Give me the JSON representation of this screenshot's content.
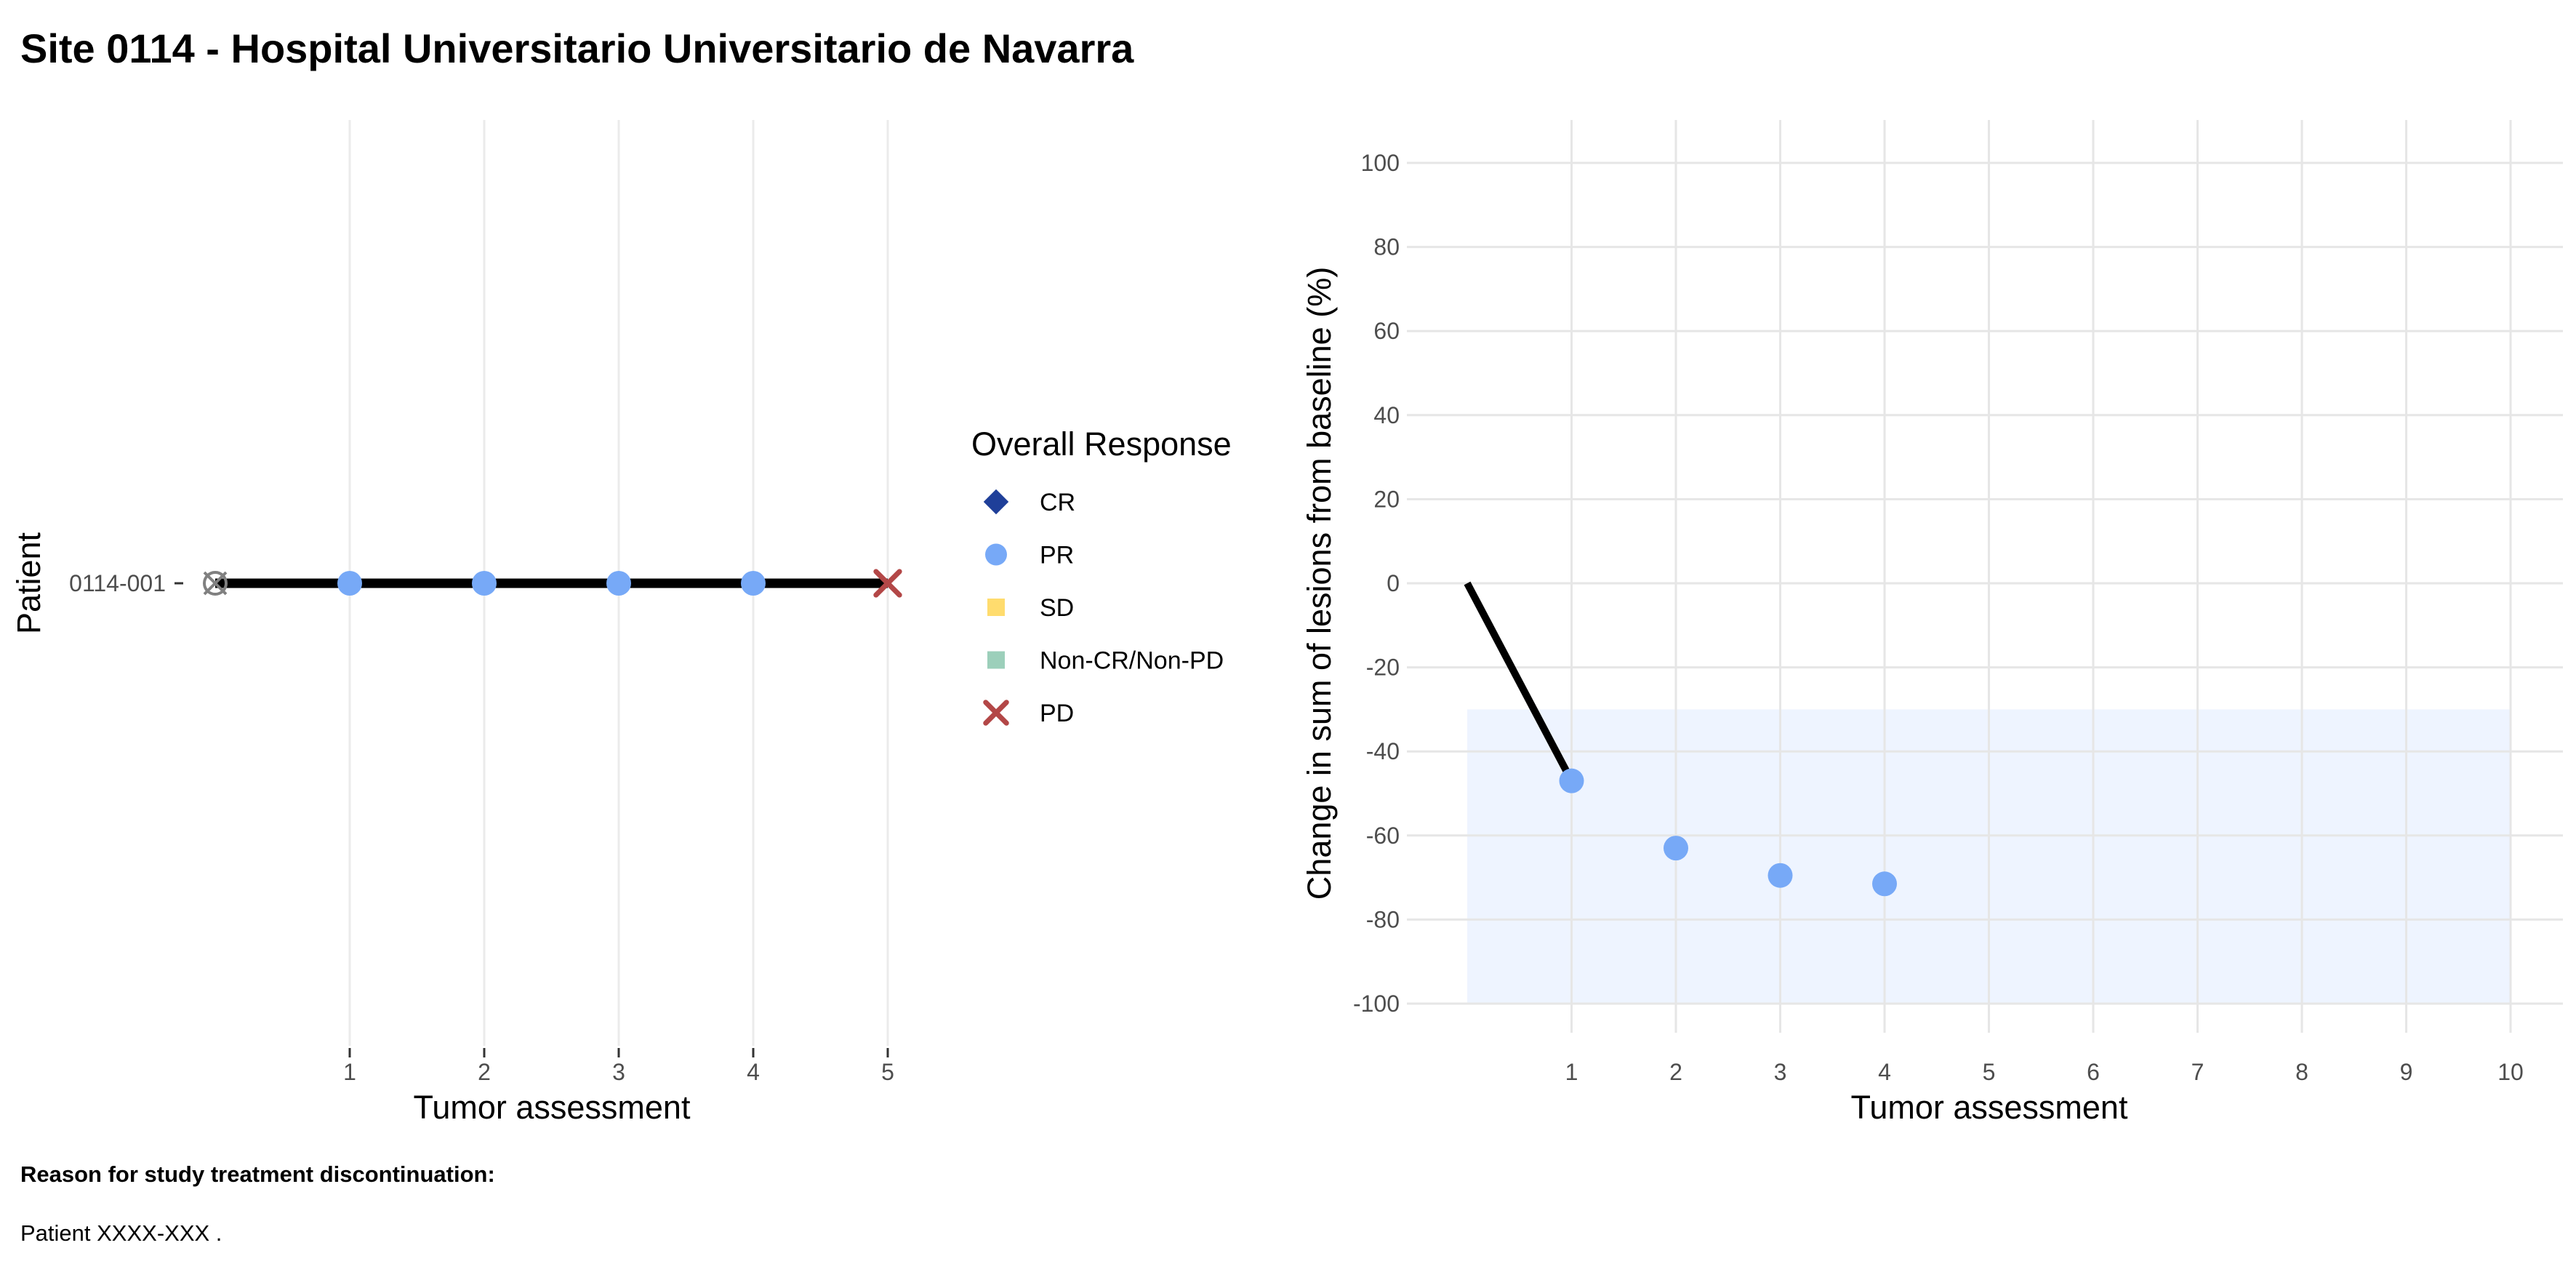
{
  "title": "Site 0114 - Hospital Universitario Universitario de Navarra",
  "footer": {
    "reason_label": "Reason for study treatment discontinuation:",
    "reason_text": "Patient XXXX-XXX ."
  },
  "legend": {
    "title": "Overall Response",
    "items": [
      {
        "label": "CR",
        "shape": "diamond",
        "color": "#1f3f99"
      },
      {
        "label": "PR",
        "shape": "circle",
        "color": "#77a9f7"
      },
      {
        "label": "SD",
        "shape": "square",
        "color": "#ffdc6e"
      },
      {
        "label": "Non-CR/Non-PD",
        "shape": "square",
        "color": "#9ccfba"
      },
      {
        "label": "PD",
        "shape": "cross",
        "color": "#b34747"
      }
    ]
  },
  "chart_data": [
    {
      "type": "scatter",
      "xlabel": "Tumor assessment",
      "ylabel": "Patient",
      "x_ticks": [
        1,
        2,
        3,
        4,
        5
      ],
      "xlim": [
        0,
        5
      ],
      "patients": [
        "0114-001"
      ],
      "series": [
        {
          "patient": "0114-001",
          "baseline_x": 0,
          "points": [
            {
              "x": 1,
              "response": "PR"
            },
            {
              "x": 2,
              "response": "PR"
            },
            {
              "x": 3,
              "response": "PR"
            },
            {
              "x": 4,
              "response": "PR"
            },
            {
              "x": 5,
              "response": "PD"
            }
          ]
        }
      ]
    },
    {
      "type": "line",
      "xlabel": "Tumor assessment",
      "ylabel": "Change in sum of lesions from baseline (%)",
      "x_ticks": [
        1,
        2,
        3,
        4,
        5,
        6,
        7,
        8,
        9,
        10
      ],
      "y_ticks": [
        100,
        80,
        60,
        40,
        20,
        0,
        -20,
        -40,
        -60,
        -80,
        -100
      ],
      "xlim": [
        0,
        10
      ],
      "ylim": [
        -100,
        100
      ],
      "shaded_band": {
        "x": [
          0,
          10
        ],
        "y": [
          -100,
          -30
        ],
        "color": "#eef4ff"
      },
      "line": {
        "x": [
          0,
          1
        ],
        "y": [
          0,
          -47
        ]
      },
      "points": [
        {
          "x": 1,
          "y": -47,
          "response": "PR"
        },
        {
          "x": 2,
          "y": -63,
          "response": "PR"
        },
        {
          "x": 3,
          "y": -69.5,
          "response": "PR"
        },
        {
          "x": 4,
          "y": -71.5,
          "response": "PR"
        }
      ]
    }
  ]
}
